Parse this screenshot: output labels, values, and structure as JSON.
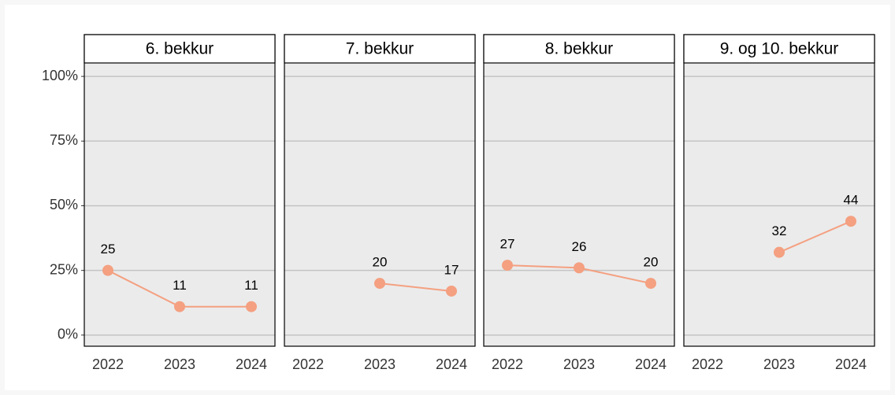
{
  "chart_data": [
    {
      "type": "line",
      "title": "6. bekkur",
      "categories": [
        "2022",
        "2023",
        "2024"
      ],
      "values": [
        25,
        11,
        11
      ],
      "color": "#f4a081",
      "ylim": [
        -4.3,
        105.2
      ],
      "yticks": [
        {
          "value": 0,
          "label": "0%"
        },
        {
          "value": 25,
          "label": "25%"
        },
        {
          "value": 50,
          "label": "50%"
        },
        {
          "value": 75,
          "label": "75%"
        },
        {
          "value": 100,
          "label": "100%"
        }
      ],
      "grid": true
    },
    {
      "type": "line",
      "title": "7. bekkur",
      "categories": [
        "2022",
        "2023",
        "2024"
      ],
      "values": [
        null,
        20,
        17
      ],
      "color": "#f4a081",
      "ylim": [
        -4.3,
        105.2
      ],
      "grid": true
    },
    {
      "type": "line",
      "title": "8. bekkur",
      "categories": [
        "2022",
        "2023",
        "2024"
      ],
      "values": [
        27,
        26,
        20
      ],
      "color": "#f4a081",
      "ylim": [
        -4.3,
        105.2
      ],
      "grid": true
    },
    {
      "type": "line",
      "title": "9. og 10. bekkur",
      "categories": [
        "2022",
        "2023",
        "2024"
      ],
      "values": [
        null,
        32,
        44
      ],
      "color": "#f4a081",
      "ylim": [
        -4.3,
        105.2
      ],
      "grid": true
    }
  ]
}
